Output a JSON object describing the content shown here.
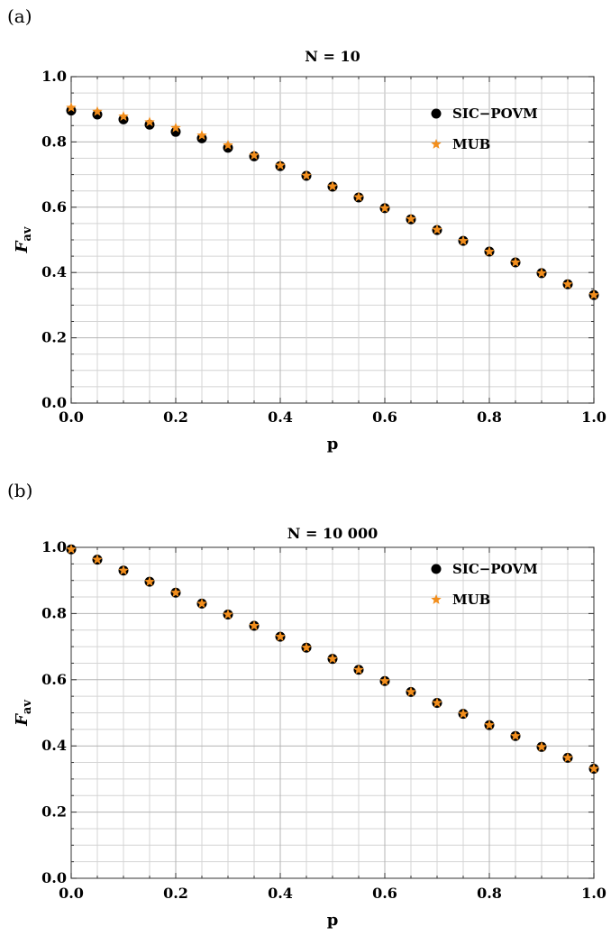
{
  "colors": {
    "sic": "#000000",
    "mub": "#f28e1c",
    "grid": "#c8c8c8",
    "frame": "#555555"
  },
  "panels": [
    {
      "label": "(a)"
    },
    {
      "label": "(b)"
    }
  ],
  "chart_data": [
    {
      "type": "scatter",
      "title": "N = 10",
      "xlabel": "p",
      "ylabel": "F",
      "ylabel_sub": "av",
      "xlim": [
        0,
        1
      ],
      "ylim": [
        0,
        1
      ],
      "x_ticks": [
        "0.0",
        "0.2",
        "0.4",
        "0.6",
        "0.8",
        "1.0"
      ],
      "y_ticks": [
        "0.0",
        "0.2",
        "0.4",
        "0.6",
        "0.8",
        "1.0"
      ],
      "grid": true,
      "legend_position": "top-right",
      "x": [
        0.0,
        0.05,
        0.1,
        0.15,
        0.2,
        0.25,
        0.3,
        0.35,
        0.4,
        0.45,
        0.5,
        0.55,
        0.6,
        0.65,
        0.7,
        0.75,
        0.8,
        0.85,
        0.9,
        0.95,
        1.0
      ],
      "series": [
        {
          "name": "SIC−POVM",
          "marker": "circle",
          "values": [
            0.896,
            0.884,
            0.869,
            0.853,
            0.831,
            0.811,
            0.782,
            0.756,
            0.726,
            0.696,
            0.663,
            0.63,
            0.597,
            0.563,
            0.53,
            0.497,
            0.464,
            0.431,
            0.398,
            0.364,
            0.331
          ]
        },
        {
          "name": "MUB",
          "marker": "star",
          "values": [
            0.905,
            0.893,
            0.878,
            0.861,
            0.843,
            0.82,
            0.79,
            0.759,
            0.728,
            0.697,
            0.664,
            0.631,
            0.597,
            0.564,
            0.531,
            0.497,
            0.464,
            0.431,
            0.398,
            0.364,
            0.331
          ]
        }
      ]
    },
    {
      "type": "scatter",
      "title": "N = 10 000",
      "xlabel": "p",
      "ylabel": "F",
      "ylabel_sub": "av",
      "xlim": [
        0,
        1
      ],
      "ylim": [
        0,
        1
      ],
      "x_ticks": [
        "0.0",
        "0.2",
        "0.4",
        "0.6",
        "0.8",
        "1.0"
      ],
      "y_ticks": [
        "0.0",
        "0.2",
        "0.4",
        "0.6",
        "0.8",
        "1.0"
      ],
      "grid": true,
      "legend_position": "top-right",
      "x": [
        0.0,
        0.05,
        0.1,
        0.15,
        0.2,
        0.25,
        0.3,
        0.35,
        0.4,
        0.45,
        0.5,
        0.55,
        0.6,
        0.65,
        0.7,
        0.75,
        0.8,
        0.85,
        0.9,
        0.95,
        1.0
      ],
      "series": [
        {
          "name": "SIC−POVM",
          "marker": "circle",
          "values": [
            0.994,
            0.963,
            0.93,
            0.896,
            0.863,
            0.83,
            0.797,
            0.763,
            0.73,
            0.697,
            0.663,
            0.63,
            0.596,
            0.563,
            0.53,
            0.497,
            0.463,
            0.43,
            0.397,
            0.364,
            0.331
          ]
        },
        {
          "name": "MUB",
          "marker": "star",
          "values": [
            0.994,
            0.963,
            0.93,
            0.896,
            0.863,
            0.83,
            0.797,
            0.763,
            0.73,
            0.697,
            0.663,
            0.63,
            0.596,
            0.563,
            0.53,
            0.497,
            0.463,
            0.43,
            0.397,
            0.364,
            0.331
          ]
        }
      ]
    }
  ]
}
